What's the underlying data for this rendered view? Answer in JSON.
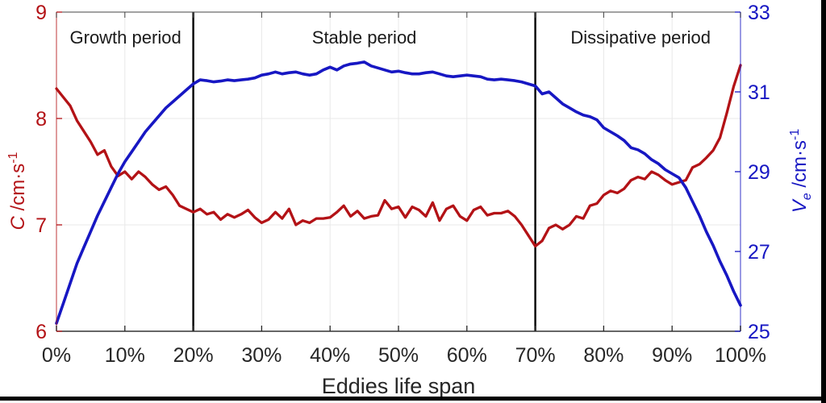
{
  "chart_data": {
    "type": "line",
    "title": "",
    "xlabel": "Eddies life span",
    "grid": true,
    "legend": "none",
    "text_color": "#262626",
    "x_axis": {
      "range": [
        0,
        100
      ],
      "tick_values": [
        0,
        10,
        20,
        30,
        40,
        50,
        60,
        70,
        80,
        90,
        100
      ],
      "tick_labels": [
        "0%",
        "10%",
        "20%",
        "30%",
        "40%",
        "50%",
        "60%",
        "70%",
        "80%",
        "90%",
        "100%"
      ]
    },
    "left_axis": {
      "label": "C /cm·s⁻¹",
      "label_parts": {
        "symbol": "C",
        "unit": " /cm·s",
        "exponent": "-1"
      },
      "range": [
        6,
        9
      ],
      "tick_values": [
        6,
        7,
        8,
        9
      ],
      "tick_labels": [
        "6",
        "7",
        "8",
        "9"
      ],
      "color": "#b31216"
    },
    "right_axis": {
      "label": "Ve /cm·s⁻¹",
      "label_parts": {
        "symbol": "V",
        "subscript": "e",
        "unit": " /cm·s",
        "exponent": "-1"
      },
      "range": [
        25,
        33
      ],
      "tick_values": [
        25,
        27,
        29,
        31,
        33
      ],
      "tick_labels": [
        "25",
        "27",
        "29",
        "31",
        "33"
      ],
      "color": "#1717c3"
    },
    "x_percent_start": 0,
    "x_percent_step": 1,
    "series": [
      {
        "name": "C",
        "axis": "left",
        "color": "#b31216",
        "values": [
          8.28,
          8.2,
          8.12,
          7.98,
          7.88,
          7.78,
          7.66,
          7.7,
          7.55,
          7.46,
          7.5,
          7.43,
          7.5,
          7.45,
          7.38,
          7.33,
          7.36,
          7.28,
          7.18,
          7.15,
          7.12,
          7.15,
          7.1,
          7.12,
          7.05,
          7.1,
          7.07,
          7.1,
          7.14,
          7.07,
          7.02,
          7.05,
          7.12,
          7.06,
          7.15,
          7.0,
          7.04,
          7.02,
          7.06,
          7.06,
          7.07,
          7.12,
          7.18,
          7.08,
          7.13,
          7.06,
          7.08,
          7.09,
          7.23,
          7.15,
          7.17,
          7.07,
          7.17,
          7.14,
          7.08,
          7.21,
          7.04,
          7.15,
          7.18,
          7.08,
          7.04,
          7.14,
          7.17,
          7.09,
          7.11,
          7.11,
          7.13,
          7.08,
          7.0,
          6.9,
          6.8,
          6.85,
          6.97,
          7.0,
          6.96,
          7.0,
          7.08,
          7.06,
          7.18,
          7.2,
          7.28,
          7.32,
          7.3,
          7.34,
          7.42,
          7.45,
          7.43,
          7.5,
          7.47,
          7.42,
          7.38,
          7.4,
          7.42,
          7.54,
          7.57,
          7.63,
          7.7,
          7.82,
          8.05,
          8.3,
          8.5
        ]
      },
      {
        "name": "Ve",
        "axis": "right",
        "color": "#1717c3",
        "values": [
          25.2,
          25.7,
          26.2,
          26.7,
          27.1,
          27.5,
          27.9,
          28.25,
          28.6,
          28.95,
          29.25,
          29.5,
          29.75,
          30.0,
          30.2,
          30.4,
          30.6,
          30.75,
          30.9,
          31.05,
          31.2,
          31.3,
          31.28,
          31.25,
          31.27,
          31.3,
          31.28,
          31.3,
          31.32,
          31.35,
          31.42,
          31.45,
          31.5,
          31.45,
          31.48,
          31.5,
          31.45,
          31.42,
          31.45,
          31.55,
          31.62,
          31.55,
          31.65,
          31.7,
          31.72,
          31.75,
          31.65,
          31.6,
          31.55,
          31.5,
          31.52,
          31.48,
          31.45,
          31.45,
          31.48,
          31.5,
          31.45,
          31.4,
          31.38,
          31.4,
          31.42,
          31.4,
          31.38,
          31.32,
          31.3,
          31.32,
          31.3,
          31.28,
          31.25,
          31.2,
          31.15,
          30.95,
          31.0,
          30.85,
          30.7,
          30.6,
          30.5,
          30.42,
          30.38,
          30.3,
          30.1,
          30.0,
          29.9,
          29.78,
          29.6,
          29.55,
          29.45,
          29.3,
          29.2,
          29.05,
          28.95,
          28.85,
          28.6,
          28.25,
          27.9,
          27.5,
          27.15,
          26.75,
          26.4,
          26.0,
          25.65
        ]
      }
    ],
    "annotations": {
      "period_labels": [
        {
          "label": "Growth period",
          "center_pct": 10.1
        },
        {
          "label": "Stable period",
          "center_pct": 45.0
        },
        {
          "label": "Dissipative period",
          "center_pct": 85.4
        }
      ],
      "divider_lines_pct": [
        20,
        70
      ],
      "divider_color": "#000000"
    }
  }
}
